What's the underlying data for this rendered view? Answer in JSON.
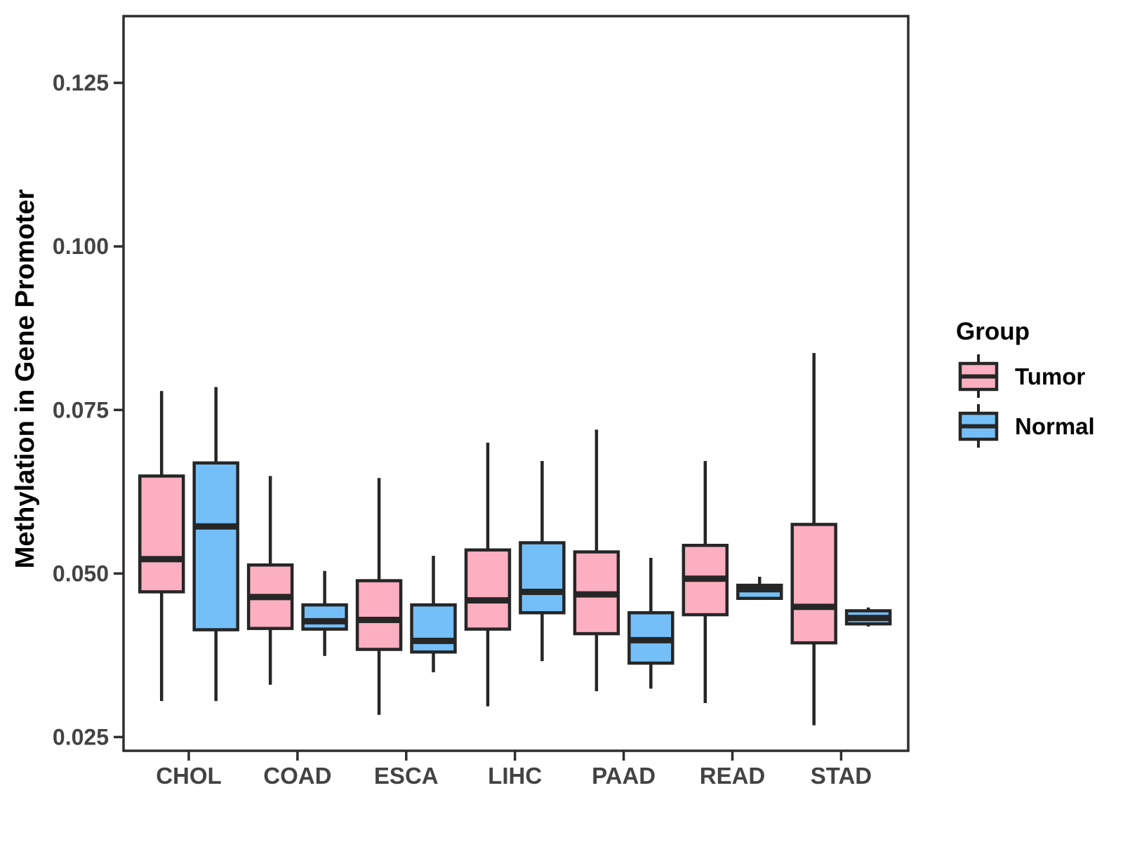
{
  "figure": {
    "background": "#FFFFFF"
  },
  "chart_data": {
    "type": "boxplot",
    "orientation": "vertical",
    "title": "",
    "xlabel": "",
    "ylabel": "Methylation in Gene Promoter",
    "ylim": [
      0.0229,
      0.1352
    ],
    "grid": false,
    "yticks": [
      {
        "value": 0.025,
        "label": "0.025"
      },
      {
        "value": 0.05,
        "label": "0.050"
      },
      {
        "value": 0.075,
        "label": "0.075"
      },
      {
        "value": 0.1,
        "label": "0.100"
      },
      {
        "value": 0.125,
        "label": "0.125"
      }
    ],
    "categories": [
      "CHOL",
      "COAD",
      "ESCA",
      "LIHC",
      "PAAD",
      "READ",
      "STAD"
    ],
    "groups": [
      {
        "name": "Tumor",
        "fill": "#FBAFC0"
      },
      {
        "name": "Normal",
        "fill": "#74BFF7"
      }
    ],
    "legend": {
      "title": "Group",
      "position": "right",
      "entries": [
        "Tumor",
        "Normal"
      ]
    },
    "style": {
      "box_stroke": "#262626",
      "panel_border": "#2E2E2E",
      "axis_text_color": "#434343",
      "axis_title_color": "#000000",
      "legend_text_color": "#000000"
    },
    "boxes": [
      {
        "category": "CHOL",
        "group": "Tumor",
        "low": 0.0305,
        "q1": 0.0472,
        "median": 0.0522,
        "q3": 0.0649,
        "high": 0.0779
      },
      {
        "category": "CHOL",
        "group": "Normal",
        "low": 0.0305,
        "q1": 0.0414,
        "median": 0.0572,
        "q3": 0.0669,
        "high": 0.0785
      },
      {
        "category": "COAD",
        "group": "Tumor",
        "low": 0.033,
        "q1": 0.0416,
        "median": 0.0464,
        "q3": 0.0513,
        "high": 0.0649
      },
      {
        "category": "COAD",
        "group": "Normal",
        "low": 0.0374,
        "q1": 0.0415,
        "median": 0.0427,
        "q3": 0.0452,
        "high": 0.0504
      },
      {
        "category": "ESCA",
        "group": "Tumor",
        "low": 0.0284,
        "q1": 0.0384,
        "median": 0.0429,
        "q3": 0.0489,
        "high": 0.0646
      },
      {
        "category": "ESCA",
        "group": "Normal",
        "low": 0.0349,
        "q1": 0.038,
        "median": 0.0397,
        "q3": 0.0452,
        "high": 0.0527
      },
      {
        "category": "LIHC",
        "group": "Tumor",
        "low": 0.0297,
        "q1": 0.0415,
        "median": 0.0459,
        "q3": 0.0536,
        "high": 0.07
      },
      {
        "category": "LIHC",
        "group": "Normal",
        "low": 0.0366,
        "q1": 0.044,
        "median": 0.0472,
        "q3": 0.0547,
        "high": 0.0672
      },
      {
        "category": "PAAD",
        "group": "Tumor",
        "low": 0.032,
        "q1": 0.0408,
        "median": 0.0468,
        "q3": 0.0533,
        "high": 0.072
      },
      {
        "category": "PAAD",
        "group": "Normal",
        "low": 0.0324,
        "q1": 0.0363,
        "median": 0.0398,
        "q3": 0.044,
        "high": 0.0524
      },
      {
        "category": "READ",
        "group": "Tumor",
        "low": 0.0302,
        "q1": 0.0437,
        "median": 0.0492,
        "q3": 0.0543,
        "high": 0.0672
      },
      {
        "category": "READ",
        "group": "Normal",
        "low": 0.0462,
        "q1": 0.0462,
        "median": 0.0476,
        "q3": 0.0482,
        "high": 0.0495
      },
      {
        "category": "STAD",
        "group": "Tumor",
        "low": 0.0268,
        "q1": 0.0394,
        "median": 0.0449,
        "q3": 0.0575,
        "high": 0.0837
      },
      {
        "category": "STAD",
        "group": "Normal",
        "low": 0.0419,
        "q1": 0.0423,
        "median": 0.0432,
        "q3": 0.0443,
        "high": 0.0448
      }
    ]
  }
}
